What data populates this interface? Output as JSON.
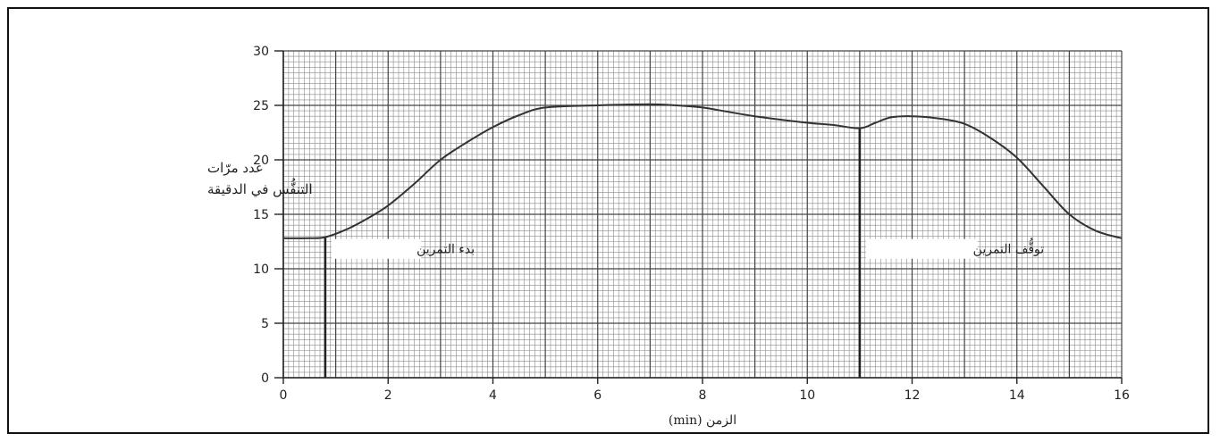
{
  "chart_data": {
    "type": "line",
    "xlabel": "الزمن (min)",
    "ylabel_lines": [
      "عدد مرّات",
      "التنفُّس في الدقيقة"
    ],
    "xlim": [
      0,
      16
    ],
    "ylim": [
      0,
      30
    ],
    "x_ticks": [
      "0",
      "2",
      "4",
      "6",
      "8",
      "10",
      "12",
      "14",
      "16"
    ],
    "y_ticks": [
      "0",
      "5",
      "10",
      "15",
      "20",
      "25",
      "30"
    ],
    "grid": true,
    "annotations": [
      {
        "text": "بدء التمرين",
        "x": 0.8
      },
      {
        "text": "توقُّف التمرين",
        "x": 11.0
      }
    ],
    "series": [
      {
        "x": [
          0,
          0.5,
          0.8,
          1.2,
          1.6,
          2.0,
          2.5,
          3.0,
          3.5,
          4.0,
          4.5,
          5.0,
          6.0,
          7.0,
          7.5,
          8.0,
          8.5,
          9.0,
          10.0,
          10.5,
          11.0,
          11.3,
          11.6,
          12.0,
          12.5,
          13.0,
          13.5,
          14.0,
          14.5,
          15.0,
          15.5,
          16.0
        ],
        "y": [
          12.8,
          12.8,
          12.9,
          13.6,
          14.6,
          15.8,
          17.8,
          20.0,
          21.6,
          23.0,
          24.1,
          24.8,
          25.0,
          25.1,
          25.0,
          24.8,
          24.4,
          24.0,
          23.4,
          23.2,
          22.9,
          23.4,
          23.9,
          24.0,
          23.8,
          23.3,
          22.0,
          20.2,
          17.6,
          15.0,
          13.5,
          12.8
        ]
      }
    ]
  }
}
